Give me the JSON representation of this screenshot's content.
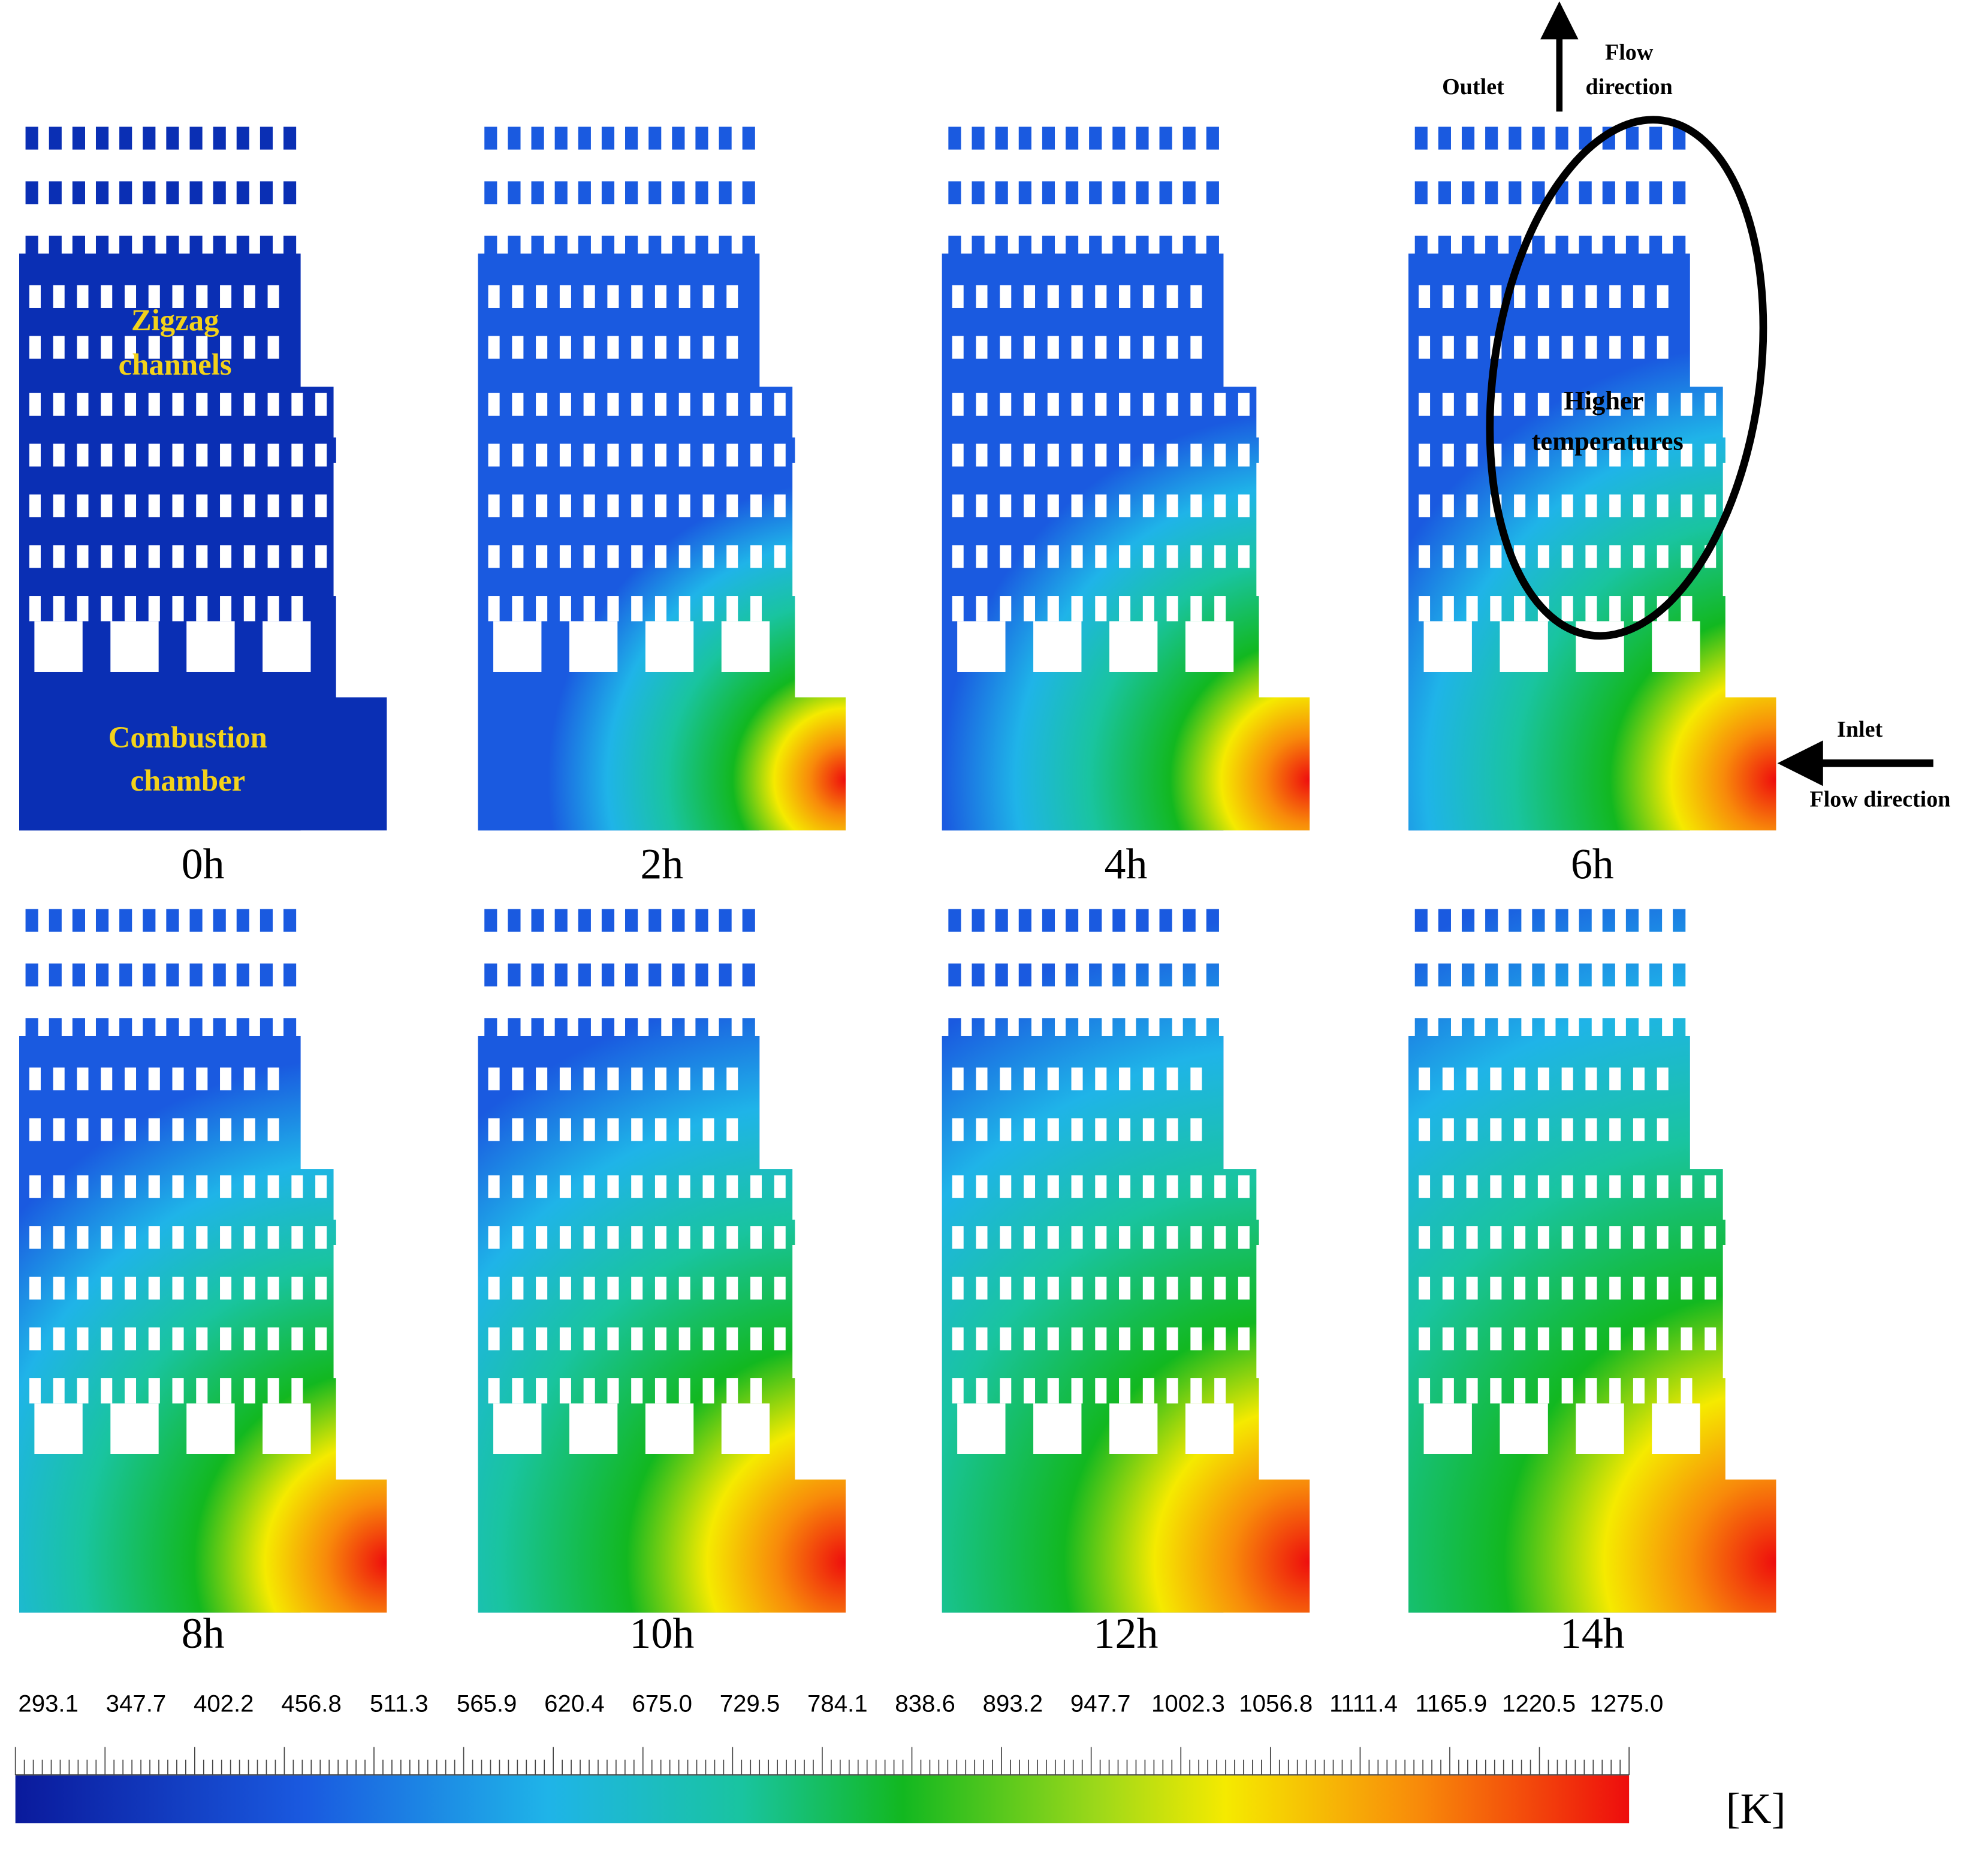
{
  "panels": [
    "0h",
    "2h",
    "4h",
    "6h",
    "8h",
    "10h",
    "12h",
    "14h"
  ],
  "annotations": {
    "zigzag": [
      "Zigzag",
      "channels"
    ],
    "combustion": [
      "Combustion",
      "chamber"
    ],
    "outlet": "Outlet",
    "outlet_flow": [
      "Flow",
      "direction"
    ],
    "higher": [
      "Higher",
      "temperatures"
    ],
    "inlet": "Inlet",
    "inlet_flow": "Flow direction"
  },
  "colorbar": {
    "ticks": [
      "293.1",
      "347.7",
      "402.2",
      "456.8",
      "511.3",
      "565.9",
      "620.4",
      "675.0",
      "729.5",
      "784.1",
      "838.6",
      "893.2",
      "947.7",
      "1002.3",
      "1056.8",
      "1111.4",
      "1165.9",
      "1220.5",
      "1275.0"
    ],
    "unit": "[K]"
  }
}
